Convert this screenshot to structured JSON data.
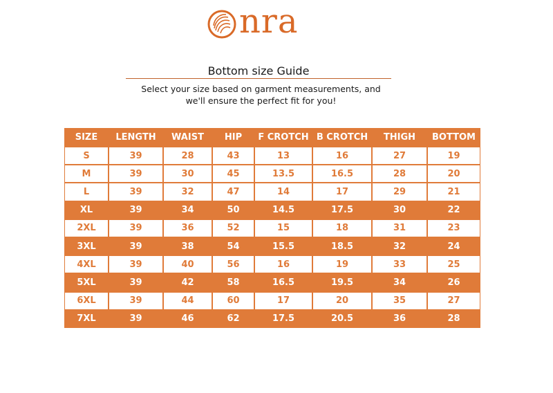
{
  "brand": {
    "name": "nra",
    "logo_icon": "shell-o-icon",
    "accent": "#e07b39"
  },
  "title": "Bottom size Guide",
  "subtitle": "Select your size based on garment measurements, and we'll ensure the perfect fit for you!",
  "table": {
    "headers": [
      "SIZE",
      "LENGTH",
      "WAIST",
      "HIP",
      "F CROTCH",
      "B CROTCH",
      "THIGH",
      "BOTTOM"
    ],
    "rows": [
      {
        "style": "white",
        "cells": [
          "S",
          "39",
          "28",
          "43",
          "13",
          "16",
          "27",
          "19"
        ]
      },
      {
        "style": "white",
        "cells": [
          "M",
          "39",
          "30",
          "45",
          "13.5",
          "16.5",
          "28",
          "20"
        ]
      },
      {
        "style": "white",
        "cells": [
          "L",
          "39",
          "32",
          "47",
          "14",
          "17",
          "29",
          "21"
        ]
      },
      {
        "style": "orange",
        "cells": [
          "XL",
          "39",
          "34",
          "50",
          "14.5",
          "17.5",
          "30",
          "22"
        ]
      },
      {
        "style": "white",
        "cells": [
          "2XL",
          "39",
          "36",
          "52",
          "15",
          "18",
          "31",
          "23"
        ]
      },
      {
        "style": "orange",
        "cells": [
          "3XL",
          "39",
          "38",
          "54",
          "15.5",
          "18.5",
          "32",
          "24"
        ]
      },
      {
        "style": "white",
        "cells": [
          "4XL",
          "39",
          "40",
          "56",
          "16",
          "19",
          "33",
          "25"
        ]
      },
      {
        "style": "orange",
        "cells": [
          "5XL",
          "39",
          "42",
          "58",
          "16.5",
          "19.5",
          "34",
          "26"
        ]
      },
      {
        "style": "white",
        "cells": [
          "6XL",
          "39",
          "44",
          "60",
          "17",
          "20",
          "35",
          "27"
        ]
      },
      {
        "style": "orange",
        "cells": [
          "7XL",
          "39",
          "46",
          "62",
          "17.5",
          "20.5",
          "36",
          "28"
        ]
      }
    ]
  }
}
